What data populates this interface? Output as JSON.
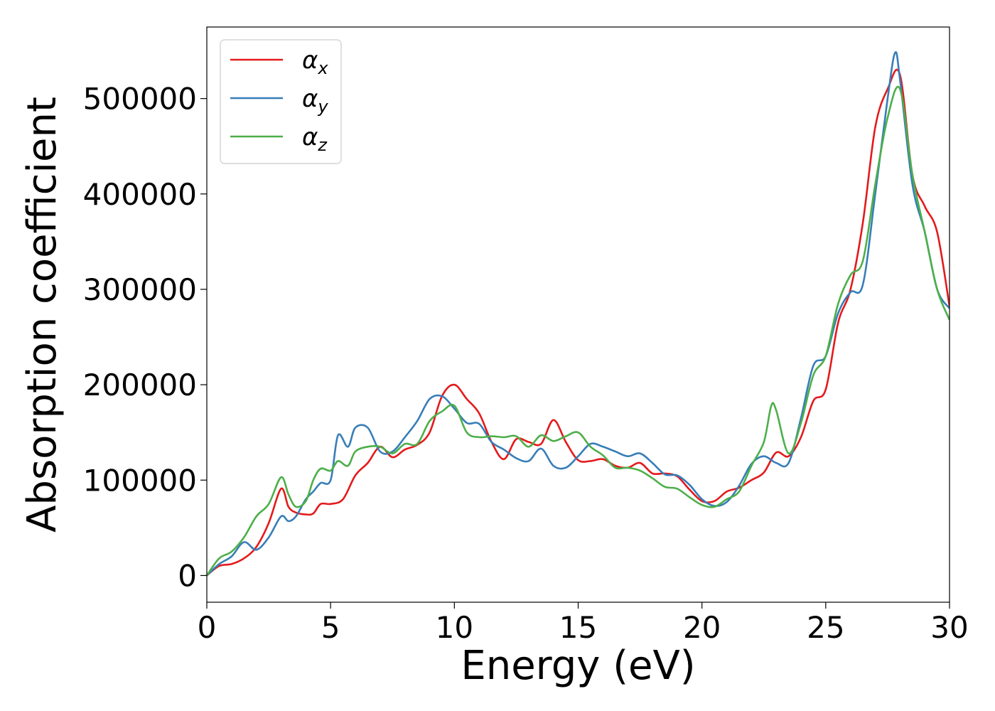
{
  "chart_data": {
    "type": "line",
    "title": "",
    "xlabel": "Energy (eV)",
    "ylabel": "Absorption coefficient",
    "xlim": [
      0,
      30
    ],
    "ylim": [
      -28000,
      575000
    ],
    "xticks": [
      "0",
      "5",
      "10",
      "15",
      "20",
      "25",
      "30"
    ],
    "yticks": [
      "0",
      "100000",
      "200000",
      "300000",
      "400000",
      "500000"
    ],
    "grid": false,
    "legend_position": "top-left",
    "legend": [
      {
        "symbol": "α",
        "sub": "x",
        "color": "#e41a1c"
      },
      {
        "symbol": "α",
        "sub": "y",
        "color": "#377eb8"
      },
      {
        "symbol": "α",
        "sub": "z",
        "color": "#4daf4a"
      }
    ],
    "series": [
      {
        "name": "αx",
        "color": "#e41a1c",
        "x": [
          0,
          0.5,
          1,
          1.5,
          2,
          2.5,
          3,
          3.3,
          3.6,
          4,
          4.3,
          4.6,
          5,
          5.5,
          6,
          6.5,
          7,
          7.5,
          8,
          8.5,
          9,
          9.5,
          10,
          10.5,
          11,
          11.5,
          12,
          12.5,
          13,
          13.5,
          14,
          14.5,
          15,
          15.5,
          16,
          16.5,
          17,
          17.5,
          18,
          18.5,
          19,
          19.5,
          20,
          20.5,
          21,
          21.5,
          22,
          22.5,
          23,
          23.5,
          24,
          24.5,
          25,
          25.5,
          26,
          26.5,
          27,
          27.5,
          28,
          28.5,
          29,
          29.5,
          30
        ],
        "y": [
          0,
          10000,
          12000,
          18000,
          30000,
          55000,
          91000,
          72000,
          66000,
          64000,
          65000,
          75000,
          75000,
          80000,
          105000,
          118000,
          135000,
          124000,
          132000,
          137000,
          150000,
          188000,
          200000,
          185000,
          170000,
          140000,
          122000,
          143000,
          140000,
          138000,
          163000,
          140000,
          121000,
          120000,
          122000,
          115000,
          113000,
          118000,
          107000,
          107000,
          104000,
          90000,
          78000,
          78000,
          88000,
          92000,
          100000,
          108000,
          129000,
          125000,
          145000,
          183000,
          195000,
          265000,
          300000,
          370000,
          470000,
          510000,
          525000,
          420000,
          387000,
          360000,
          282000
        ]
      },
      {
        "name": "αy",
        "color": "#377eb8",
        "x": [
          0,
          0.5,
          1,
          1.5,
          2,
          2.5,
          3,
          3.3,
          3.6,
          4,
          4.3,
          4.6,
          5,
          5.3,
          5.7,
          6,
          6.5,
          7,
          7.5,
          8,
          8.5,
          9,
          9.5,
          10,
          10.5,
          11,
          11.5,
          12,
          12.5,
          13,
          13.5,
          14,
          14.5,
          15,
          15.5,
          16,
          16.5,
          17,
          17.5,
          18,
          18.5,
          19,
          19.5,
          20,
          20.5,
          21,
          21.5,
          22,
          22.5,
          23,
          23.5,
          24,
          24.5,
          25,
          25.5,
          26,
          26.5,
          27,
          27.5,
          27.8,
          28,
          28.5,
          29,
          29.5,
          30
        ],
        "y": [
          0,
          12000,
          20000,
          35000,
          27000,
          40000,
          62000,
          57000,
          62000,
          80000,
          88000,
          97000,
          100000,
          147000,
          135000,
          155000,
          155000,
          130000,
          130000,
          145000,
          162000,
          185000,
          188000,
          175000,
          160000,
          159000,
          140000,
          132000,
          123000,
          120000,
          133000,
          115000,
          113000,
          125000,
          138000,
          135000,
          130000,
          125000,
          128000,
          118000,
          106000,
          105000,
          95000,
          80000,
          73000,
          77000,
          94000,
          117000,
          125000,
          118000,
          118000,
          165000,
          220000,
          230000,
          275000,
          297000,
          305000,
          400000,
          500000,
          548000,
          520000,
          410000,
          360000,
          300000,
          280000
        ]
      },
      {
        "name": "αz",
        "color": "#4daf4a",
        "x": [
          0,
          0.5,
          1,
          1.5,
          2,
          2.5,
          3,
          3.3,
          3.6,
          4,
          4.3,
          4.6,
          5,
          5.3,
          5.7,
          6,
          6.5,
          7,
          7.5,
          8,
          8.5,
          9,
          9.5,
          10,
          10.5,
          11,
          11.5,
          12,
          12.5,
          13,
          13.5,
          14,
          14.5,
          15,
          15.5,
          16,
          16.5,
          17,
          17.5,
          18,
          18.5,
          19,
          19.5,
          20,
          20.5,
          21,
          21.5,
          22,
          22.5,
          22.8,
          23,
          23.5,
          24,
          24.5,
          25,
          25.5,
          26,
          26.5,
          27,
          27.5,
          28,
          28.5,
          29,
          29.5,
          30
        ],
        "y": [
          0,
          18000,
          25000,
          40000,
          62000,
          75000,
          103000,
          85000,
          72000,
          78000,
          100000,
          112000,
          110000,
          120000,
          115000,
          130000,
          135000,
          135000,
          128000,
          138000,
          138000,
          162000,
          172000,
          178000,
          150000,
          145000,
          146000,
          145000,
          146000,
          135000,
          147000,
          141000,
          146000,
          150000,
          135000,
          126000,
          113000,
          113000,
          110000,
          102000,
          93000,
          91000,
          82000,
          74000,
          72000,
          80000,
          88000,
          115000,
          140000,
          178000,
          173000,
          128000,
          160000,
          210000,
          230000,
          285000,
          315000,
          330000,
          410000,
          480000,
          510000,
          420000,
          360000,
          300000,
          268000
        ]
      }
    ]
  }
}
